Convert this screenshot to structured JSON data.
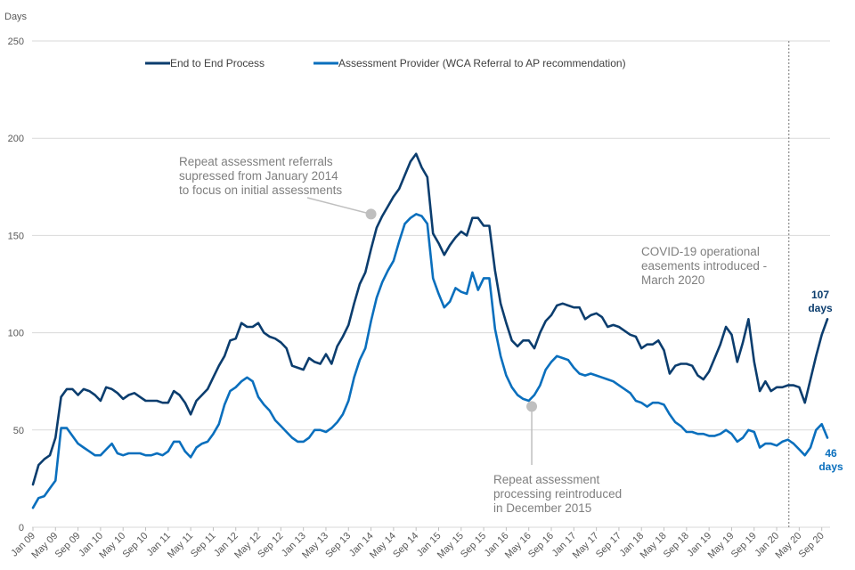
{
  "chart_data": {
    "type": "line",
    "title": "",
    "ylabel": "Days",
    "xlabel": "",
    "ylim": [
      0,
      250
    ],
    "yticks": [
      0,
      50,
      100,
      150,
      200,
      250
    ],
    "grid": true,
    "legend_position": "top-center",
    "x_start": "Jan 09",
    "x_end": "Sep 20",
    "x_frequency": "monthly",
    "xtick_labels": [
      "Jan 09",
      "May 09",
      "Sep 09",
      "Jan 10",
      "May 10",
      "Sep 10",
      "Jan 11",
      "May 11",
      "Sep 11",
      "Jan 12",
      "May 12",
      "Sep 12",
      "Jan 13",
      "May 13",
      "Sep 13",
      "Jan 14",
      "May 14",
      "Sep 14",
      "Jan 15",
      "May 15",
      "Sep 15",
      "Jan 16",
      "May 16",
      "Sep 16",
      "Jan 17",
      "May 17",
      "Sep 17",
      "Jan 18",
      "May 18",
      "Sep 18",
      "Jan 19",
      "May 19",
      "Sep 19",
      "Jan 20",
      "May 20",
      "Sep 20"
    ],
    "series": [
      {
        "name": "End to End Process",
        "color": "#0b3d6e",
        "values": [
          22,
          32,
          35,
          37,
          46,
          67,
          71,
          71,
          68,
          71,
          70,
          68,
          65,
          72,
          71,
          69,
          66,
          68,
          69,
          67,
          65,
          65,
          65,
          64,
          64,
          70,
          68,
          64,
          58,
          65,
          68,
          71,
          77,
          83,
          88,
          96,
          97,
          105,
          103,
          103,
          105,
          100,
          98,
          97,
          95,
          92,
          83,
          82,
          81,
          87,
          85,
          84,
          89,
          84,
          93,
          98,
          104,
          115,
          125,
          131,
          143,
          154,
          160,
          165,
          170,
          174,
          181,
          188,
          192,
          185,
          180,
          151,
          146,
          140,
          145,
          149,
          152,
          150,
          159,
          159,
          155,
          155,
          132,
          115,
          105,
          96,
          93,
          96,
          96,
          92,
          100,
          106,
          109,
          114,
          115,
          114,
          113,
          113,
          107,
          109,
          110,
          108,
          103,
          104,
          103,
          101,
          99,
          98,
          92,
          94,
          94,
          96,
          91,
          79,
          83,
          84,
          84,
          83,
          78,
          76,
          80,
          87,
          94,
          103,
          99,
          85,
          95,
          107,
          85,
          70,
          75,
          70,
          72,
          72,
          73,
          73,
          72,
          64,
          76,
          88,
          99,
          107
        ]
      },
      {
        "name": "Assessment Provider (WCA Referral to AP recommendation)",
        "color": "#0a6fbd",
        "values": [
          10,
          15,
          16,
          20,
          24,
          51,
          51,
          47,
          43,
          41,
          39,
          37,
          37,
          40,
          43,
          38,
          37,
          38,
          38,
          38,
          37,
          37,
          38,
          37,
          39,
          44,
          44,
          39,
          36,
          41,
          43,
          44,
          48,
          53,
          63,
          70,
          72,
          75,
          77,
          75,
          67,
          63,
          60,
          55,
          52,
          49,
          46,
          44,
          44,
          46,
          50,
          50,
          49,
          51,
          54,
          58,
          65,
          77,
          86,
          92,
          106,
          118,
          126,
          132,
          137,
          147,
          156,
          159,
          161,
          160,
          156,
          128,
          120,
          113,
          116,
          123,
          121,
          120,
          131,
          122,
          128,
          128,
          102,
          88,
          78,
          72,
          68,
          66,
          65,
          68,
          73,
          81,
          85,
          88,
          87,
          86,
          82,
          79,
          78,
          79,
          78,
          77,
          76,
          75,
          73,
          71,
          69,
          65,
          64,
          62,
          64,
          64,
          63,
          58,
          54,
          52,
          49,
          49,
          48,
          48,
          47,
          47,
          48,
          50,
          48,
          44,
          46,
          50,
          49,
          41,
          43,
          43,
          42,
          44,
          45,
          43,
          40,
          37,
          41,
          50,
          53,
          46
        ]
      }
    ],
    "legend": [
      "End to End Process",
      "Assessment Provider (WCA Referral to AP recommendation)"
    ],
    "annotations": [
      {
        "text": [
          "Repeat assessment referrals",
          "supressed from January 2014",
          "to focus on initial assessments"
        ],
        "x": "Jan 14",
        "y": 161
      },
      {
        "text": [
          "Repeat assessment",
          "processing reintroduced",
          "in December 2015"
        ],
        "x": "Jun 16",
        "y": 63
      },
      {
        "text": [
          "COVID-19 operational",
          "easements introduced -",
          "March 2020"
        ],
        "x": "Mar 20",
        "marker": "dashed vertical line"
      },
      {
        "text": [
          "107",
          "days"
        ],
        "series": "End to End Process",
        "x": "Sep 20",
        "y": 107
      },
      {
        "text": [
          "46",
          "days"
        ],
        "series": "Assessment Provider (WCA Referral to AP recommendation)",
        "x": "Sep 20",
        "y": 46
      }
    ]
  }
}
